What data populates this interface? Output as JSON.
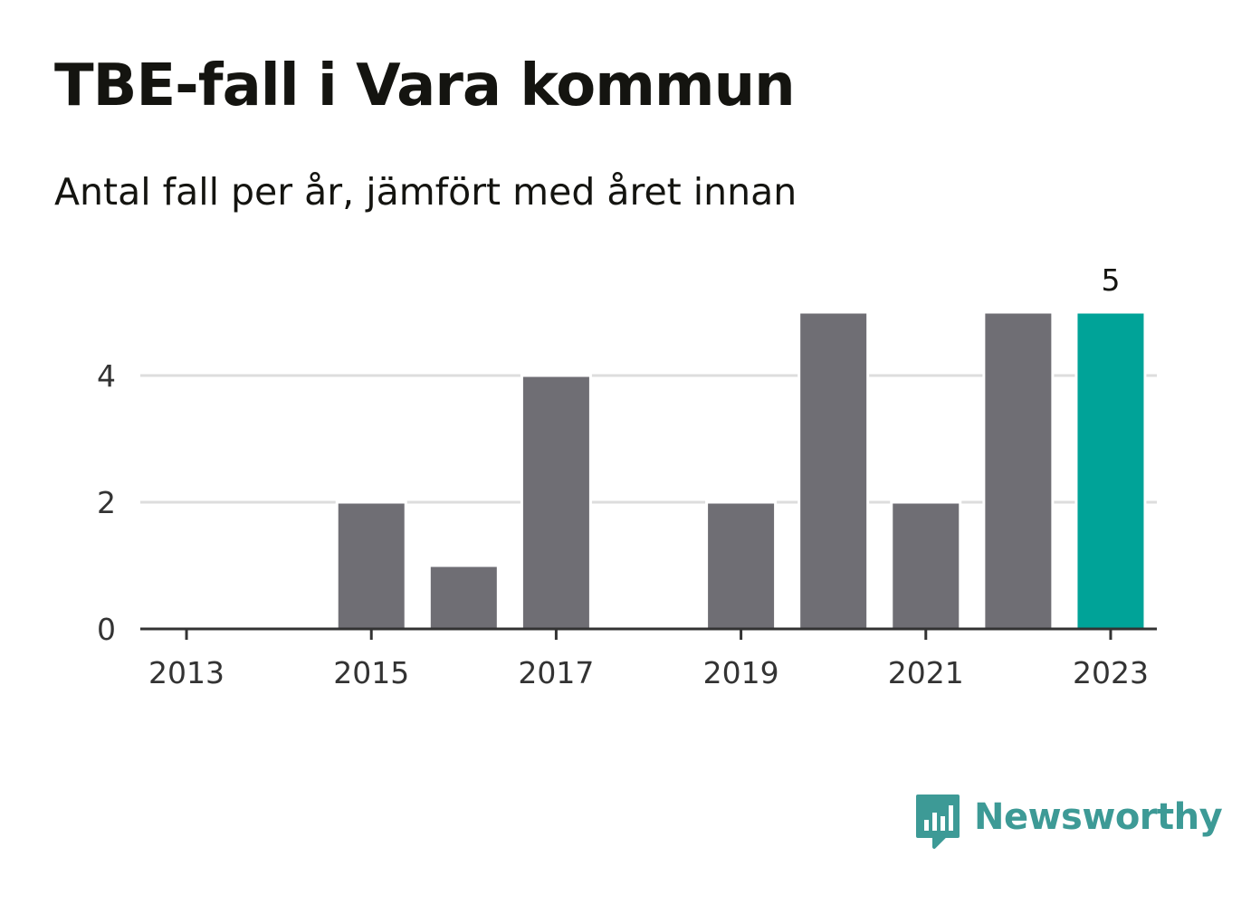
{
  "title": "TBE-fall i Vara kommun",
  "subtitle": "Antal fall per år, jämfört med året innan",
  "logo": {
    "text": "Newsworthy",
    "icon": "bar-chart-speech-bubble-icon",
    "color": "#3d9a96"
  },
  "colors": {
    "bar": "#6f6e74",
    "highlight": "#00a398",
    "grid": "#dddddd",
    "axis": "#333333"
  },
  "chart_data": {
    "type": "bar",
    "categories": [
      "2013",
      "2014",
      "2015",
      "2016",
      "2017",
      "2018",
      "2019",
      "2020",
      "2021",
      "2022",
      "2023"
    ],
    "values": [
      0,
      0,
      2,
      1,
      4,
      0,
      2,
      5,
      2,
      5,
      5
    ],
    "highlight_index": 10,
    "x_tick_labels": [
      "2013",
      "2015",
      "2017",
      "2019",
      "2021",
      "2023"
    ],
    "y_ticks": [
      0,
      2,
      4
    ],
    "ylim": [
      0,
      5
    ],
    "grid": true,
    "data_labels": [
      {
        "index": 10,
        "text": "5"
      }
    ],
    "xlabel": "",
    "ylabel": ""
  }
}
